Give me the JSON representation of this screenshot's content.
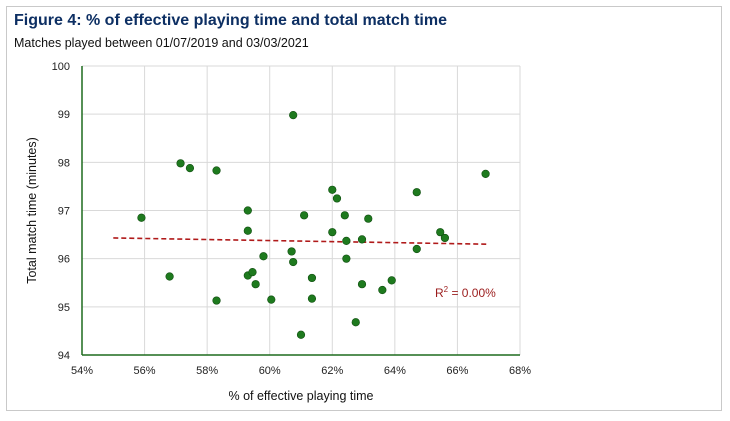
{
  "header": {
    "title": "Figure 4: % of effective playing time and total match time",
    "subtitle": "Matches played between 01/07/2019 and 03/03/2021"
  },
  "chart_data": {
    "type": "scatter",
    "xlabel": "% of effective playing time",
    "ylabel": "Total match time (minutes)",
    "xlim": [
      54,
      68
    ],
    "ylim": [
      94,
      100
    ],
    "x_ticks": [
      "54%",
      "56%",
      "58%",
      "60%",
      "62%",
      "64%",
      "66%",
      "68%"
    ],
    "y_ticks": [
      "94",
      "95",
      "96",
      "97",
      "98",
      "99",
      "100"
    ],
    "grid": true,
    "colors": {
      "points": "#1e7a1e",
      "point_stroke": "#0f4d0f",
      "trendline": "#b01a1a",
      "grid": "#d9d9d9",
      "axis": "#1e6b1e"
    },
    "points": [
      {
        "x": 55.9,
        "y": 96.85
      },
      {
        "x": 56.8,
        "y": 95.63
      },
      {
        "x": 57.15,
        "y": 97.98
      },
      {
        "x": 57.45,
        "y": 97.88
      },
      {
        "x": 58.3,
        "y": 97.83
      },
      {
        "x": 58.3,
        "y": 95.13
      },
      {
        "x": 59.3,
        "y": 97.0
      },
      {
        "x": 59.3,
        "y": 96.58
      },
      {
        "x": 59.3,
        "y": 95.65
      },
      {
        "x": 59.45,
        "y": 95.72
      },
      {
        "x": 59.55,
        "y": 95.47
      },
      {
        "x": 59.8,
        "y": 96.05
      },
      {
        "x": 60.05,
        "y": 95.15
      },
      {
        "x": 60.75,
        "y": 98.98
      },
      {
        "x": 60.7,
        "y": 96.15
      },
      {
        "x": 60.75,
        "y": 95.93
      },
      {
        "x": 61.0,
        "y": 94.42
      },
      {
        "x": 61.1,
        "y": 96.9
      },
      {
        "x": 61.35,
        "y": 95.6
      },
      {
        "x": 61.35,
        "y": 95.17
      },
      {
        "x": 62.0,
        "y": 97.43
      },
      {
        "x": 62.0,
        "y": 96.55
      },
      {
        "x": 62.15,
        "y": 97.25
      },
      {
        "x": 62.4,
        "y": 96.9
      },
      {
        "x": 62.45,
        "y": 96.37
      },
      {
        "x": 62.45,
        "y": 96.0
      },
      {
        "x": 62.75,
        "y": 94.68
      },
      {
        "x": 62.95,
        "y": 96.4
      },
      {
        "x": 62.95,
        "y": 95.47
      },
      {
        "x": 63.15,
        "y": 96.83
      },
      {
        "x": 63.6,
        "y": 95.35
      },
      {
        "x": 63.9,
        "y": 95.55
      },
      {
        "x": 64.7,
        "y": 97.38
      },
      {
        "x": 64.7,
        "y": 96.2
      },
      {
        "x": 65.45,
        "y": 96.55
      },
      {
        "x": 65.6,
        "y": 96.43
      },
      {
        "x": 66.9,
        "y": 97.76
      }
    ],
    "trendline": {
      "x": [
        55.0,
        67.0
      ],
      "y": [
        96.43,
        96.3
      ]
    },
    "annotation": {
      "prefix": "R",
      "superscript": "2",
      "suffix": " = 0.00%"
    }
  }
}
